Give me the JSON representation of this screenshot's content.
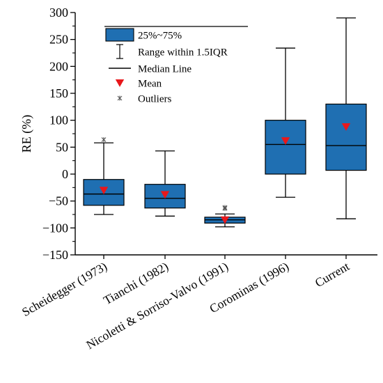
{
  "chart_data": {
    "type": "box",
    "ylabel": "RE (%)",
    "xlabel": "",
    "ylim": [
      -150,
      300
    ],
    "yticks": [
      -150,
      -100,
      -50,
      0,
      50,
      100,
      150,
      200,
      250,
      300
    ],
    "grid": false,
    "box_color": "#1f6fb2",
    "mean_color": "#e8171b",
    "legend": {
      "placement": "top-center",
      "entries": [
        {
          "key": "box",
          "label": "25%~75%"
        },
        {
          "key": "range",
          "label": "Range within 1.5IQR"
        },
        {
          "key": "median",
          "label": "Median Line"
        },
        {
          "key": "mean",
          "label": "Mean"
        },
        {
          "key": "outlier",
          "label": "Outliers"
        }
      ]
    },
    "categories": [
      "Scheidegger (1973)",
      "Tianchi (1982)",
      "Nicoletti & Sorriso-Valvo (1991)",
      "Corominas (1996)",
      "Current"
    ],
    "boxes": [
      {
        "whisker_low": -75,
        "q1": -58,
        "median": -37,
        "q3": -10,
        "whisker_high": 58,
        "mean": -30,
        "outliers": [
          64
        ]
      },
      {
        "whisker_low": -78,
        "q1": -63,
        "median": -45,
        "q3": -19,
        "whisker_high": 43,
        "mean": -38,
        "outliers": []
      },
      {
        "whisker_low": -98,
        "q1": -91,
        "median": -85,
        "q3": -80,
        "whisker_high": -74,
        "mean": -85,
        "outliers": [
          -62,
          -64
        ]
      },
      {
        "whisker_low": -43,
        "q1": 0,
        "median": 55,
        "q3": 100,
        "whisker_high": 234,
        "mean": 62,
        "outliers": []
      },
      {
        "whisker_low": -83,
        "q1": 7,
        "median": 53,
        "q3": 130,
        "whisker_high": 290,
        "mean": 88,
        "outliers": []
      }
    ]
  }
}
